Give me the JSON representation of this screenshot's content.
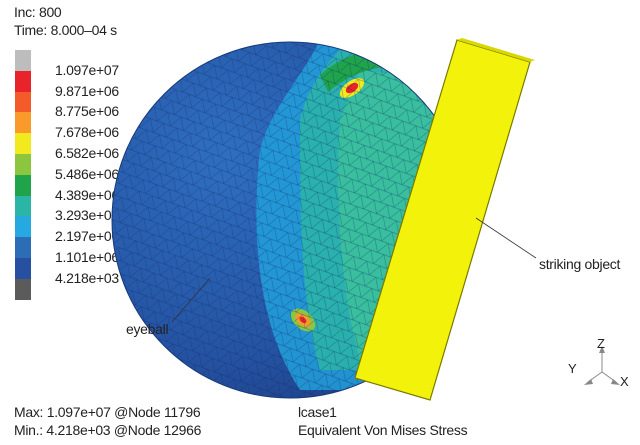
{
  "header": {
    "increment": "Inc: 800",
    "time": "Time: 8.000–04 s"
  },
  "legend": {
    "colors": [
      "#bdbdbd",
      "#e8242a",
      "#f45b2a",
      "#f99a2b",
      "#f2ea1e",
      "#8cc63f",
      "#1fa34b",
      "#2bb5a6",
      "#25a9e0",
      "#2c6db5",
      "#2750a1",
      "#5b5b5b"
    ],
    "labels": [
      "1.097e+07",
      "9.871e+06",
      "8.775e+06",
      "7.678e+06",
      "6.582e+06",
      "5.486e+06",
      "4.389e+06",
      "3.293e+06",
      "2.197e+06",
      "1.101e+06",
      "4.218e+03"
    ]
  },
  "annotations": {
    "eyeball": "eyeball",
    "striking_object": "striking object"
  },
  "axes": {
    "z": "Z",
    "y": "Y",
    "x": "X"
  },
  "footer": {
    "max": "Max: 1.097e+07 @Node 11796",
    "min": "Min.: 4.218e+03 @Node 12966",
    "lcase": "lcase1",
    "quantity": "Equivalent Von Mises Stress"
  }
}
